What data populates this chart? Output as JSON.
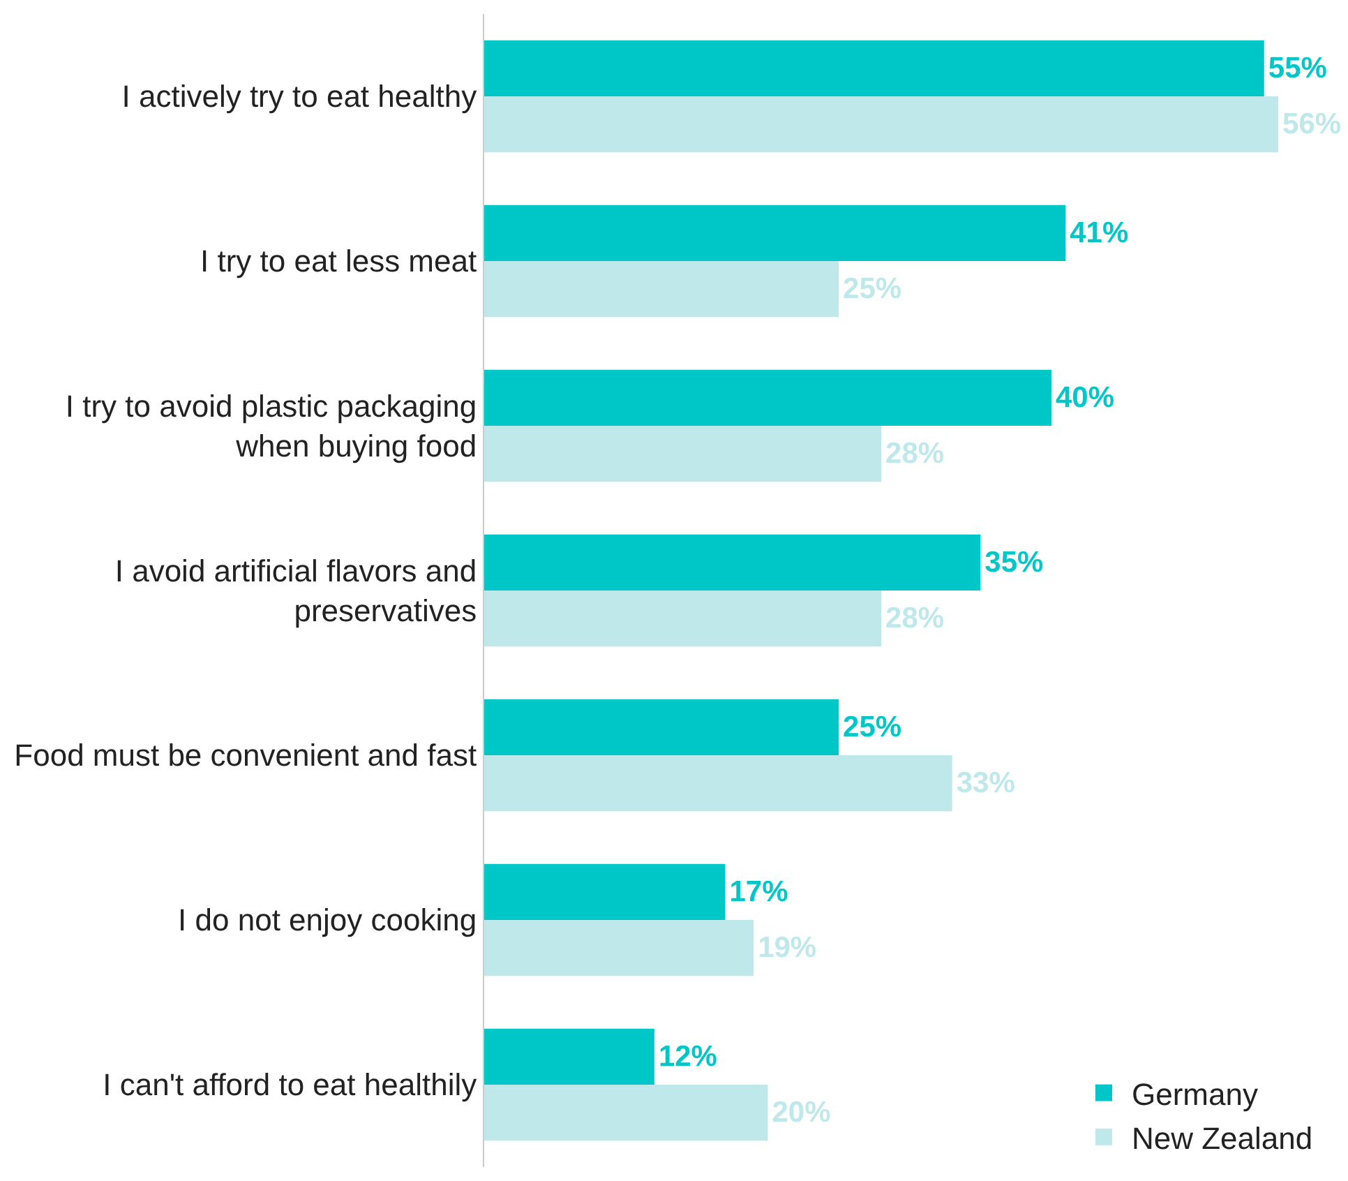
{
  "chart_data": {
    "type": "bar",
    "orientation": "horizontal",
    "categories": [
      "I actively try to eat healthy",
      "I try to eat less meat",
      "I try to avoid plastic packaging when buying food",
      "I avoid artificial flavors and preservatives",
      "Food must be convenient and fast",
      "I do not enjoy cooking",
      "I can't afford to eat healthily"
    ],
    "series": [
      {
        "name": "Germany",
        "color": "#00c7c7",
        "values": [
          55,
          41,
          40,
          35,
          25,
          17,
          12
        ],
        "value_labels": [
          "55%",
          "41%",
          "40%",
          "35%",
          "25%",
          "17%",
          "12%"
        ]
      },
      {
        "name": "New Zealand",
        "color": "#bfe8ea",
        "values": [
          56,
          25,
          28,
          28,
          33,
          19,
          20
        ],
        "value_labels": [
          "56%",
          "25%",
          "28%",
          "28%",
          "33%",
          "19%",
          "20%"
        ]
      }
    ],
    "legend": "bottom right"
  }
}
